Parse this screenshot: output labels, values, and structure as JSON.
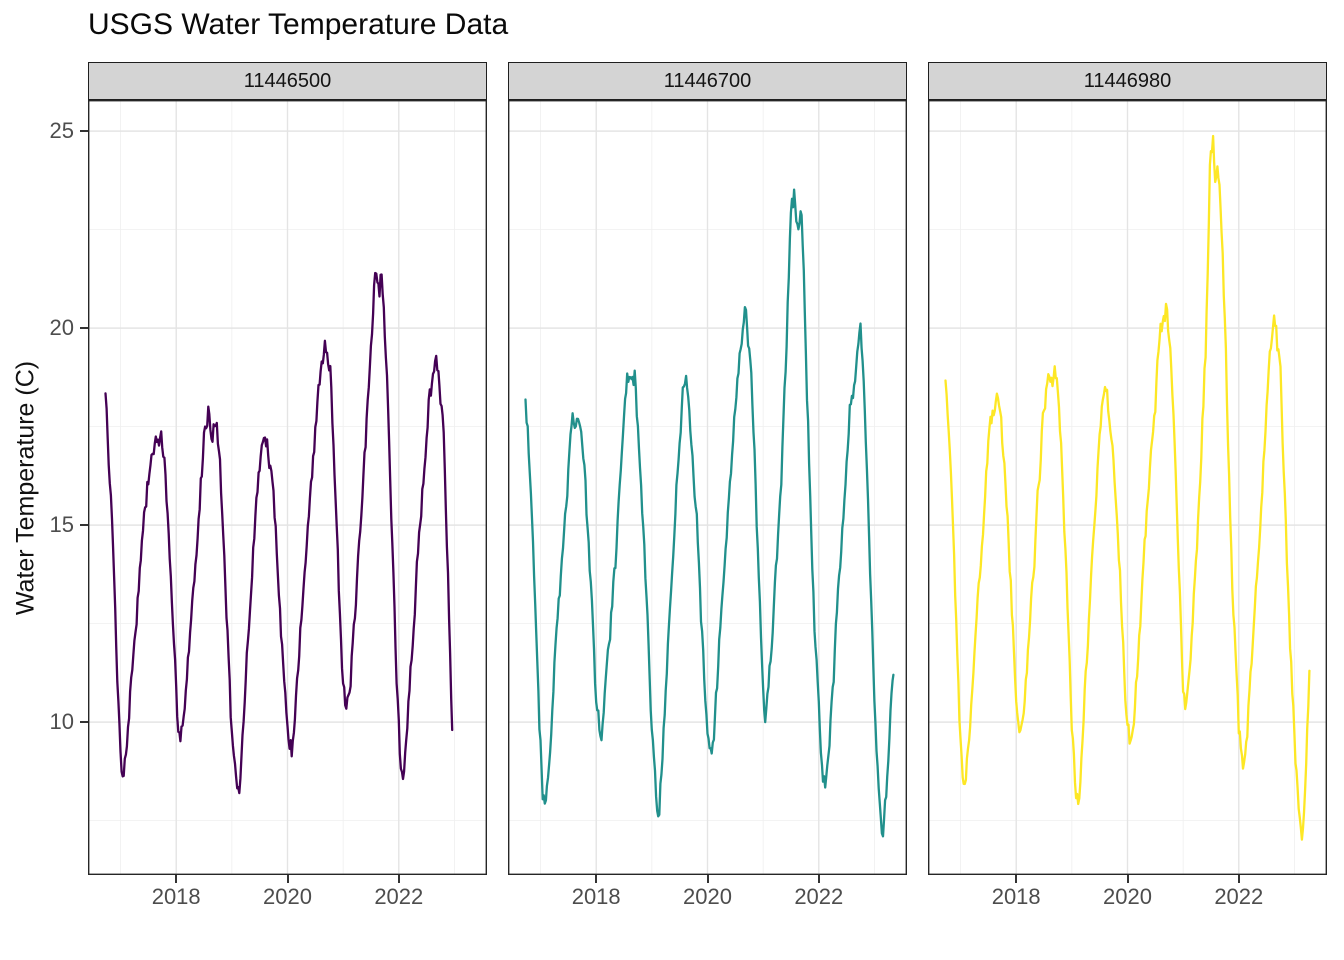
{
  "title": "USGS Water Temperature Data",
  "axes": {
    "y_label": "Water Temperature (C)",
    "y_tick_labels": [
      "25",
      "20",
      "15",
      "10"
    ],
    "x_tick_labels": [
      "2018",
      "2020",
      "2022"
    ]
  },
  "colors": {
    "strip_background": "#D4D4D4",
    "strip_border": "#1F1F1F",
    "panel_border": "#262626",
    "grid_major": "#E4E4E4",
    "grid_minor": "#EFEFEF",
    "tick_mark": "#333333",
    "tick_text": "#4D4D4D",
    "series_purple": "#440154",
    "series_teal": "#21908C",
    "series_yellow": "#FDE725"
  },
  "chart_data": {
    "type": "line",
    "title": "USGS Water Temperature Data",
    "xlabel": "",
    "ylabel": "Water Temperature (C)",
    "ylim": [
      6.12,
      25.79
    ],
    "xlim": [
      2016.415,
      2023.585
    ],
    "y_major_ticks": [
      25,
      20,
      15,
      10
    ],
    "y_minor_gridlines": [
      22.5,
      17.5,
      12.5,
      7.5
    ],
    "x_major_ticks": [
      2018,
      2020,
      2022
    ],
    "x_minor_gridlines": [
      2017,
      2019,
      2021,
      2023
    ],
    "grid": true,
    "legend": "none",
    "facet_variable": "USGS station id",
    "x_unit": "decimal year",
    "y_unit": "degrees C",
    "facets": [
      {
        "label": "11446500",
        "color": "#440154",
        "points": [
          [
            2016.73,
            18.4
          ],
          [
            2016.76,
            17.6
          ],
          [
            2016.85,
            15.0
          ],
          [
            2016.95,
            10.8
          ],
          [
            2017.02,
            8.9
          ],
          [
            2017.06,
            8.7
          ],
          [
            2017.12,
            9.6
          ],
          [
            2017.2,
            11.2
          ],
          [
            2017.3,
            13.0
          ],
          [
            2017.4,
            14.8
          ],
          [
            2017.5,
            16.2
          ],
          [
            2017.58,
            16.9
          ],
          [
            2017.65,
            17.1
          ],
          [
            2017.72,
            17.3
          ],
          [
            2017.78,
            16.7
          ],
          [
            2017.85,
            15.2
          ],
          [
            2017.95,
            12.0
          ],
          [
            2018.02,
            10.1
          ],
          [
            2018.08,
            9.8
          ],
          [
            2018.15,
            10.4
          ],
          [
            2018.25,
            12.2
          ],
          [
            2018.4,
            15.0
          ],
          [
            2018.5,
            17.3
          ],
          [
            2018.58,
            18.0
          ],
          [
            2018.65,
            17.4
          ],
          [
            2018.72,
            17.8
          ],
          [
            2018.8,
            16.2
          ],
          [
            2018.9,
            13.0
          ],
          [
            2019.0,
            9.6
          ],
          [
            2019.08,
            8.3
          ],
          [
            2019.13,
            8.1
          ],
          [
            2019.2,
            9.8
          ],
          [
            2019.3,
            12.3
          ],
          [
            2019.42,
            15.2
          ],
          [
            2019.52,
            16.9
          ],
          [
            2019.6,
            17.2
          ],
          [
            2019.68,
            16.6
          ],
          [
            2019.75,
            15.6
          ],
          [
            2019.85,
            13.4
          ],
          [
            2019.95,
            10.8
          ],
          [
            2020.03,
            9.4
          ],
          [
            2020.08,
            9.3
          ],
          [
            2020.15,
            10.6
          ],
          [
            2020.28,
            13.2
          ],
          [
            2020.42,
            15.9
          ],
          [
            2020.52,
            17.8
          ],
          [
            2020.62,
            19.2
          ],
          [
            2020.7,
            19.5
          ],
          [
            2020.78,
            18.9
          ],
          [
            2020.85,
            16.5
          ],
          [
            2020.92,
            13.6
          ],
          [
            2021.0,
            10.8
          ],
          [
            2021.05,
            10.2
          ],
          [
            2021.1,
            10.5
          ],
          [
            2021.2,
            12.4
          ],
          [
            2021.32,
            15.0
          ],
          [
            2021.45,
            18.2
          ],
          [
            2021.55,
            21.0
          ],
          [
            2021.6,
            21.8
          ],
          [
            2021.65,
            20.9
          ],
          [
            2021.7,
            21.4
          ],
          [
            2021.78,
            19.0
          ],
          [
            2021.85,
            16.0
          ],
          [
            2021.95,
            11.5
          ],
          [
            2022.03,
            9.0
          ],
          [
            2022.08,
            8.5
          ],
          [
            2022.15,
            9.8
          ],
          [
            2022.28,
            12.8
          ],
          [
            2022.42,
            15.8
          ],
          [
            2022.55,
            18.3
          ],
          [
            2022.65,
            19.1
          ],
          [
            2022.72,
            18.7
          ],
          [
            2022.8,
            17.5
          ],
          [
            2022.87,
            14.5
          ],
          [
            2022.93,
            11.5
          ],
          [
            2022.96,
            9.8
          ]
        ]
      },
      {
        "label": "11446700",
        "color": "#21908C",
        "points": [
          [
            2016.73,
            18.4
          ],
          [
            2016.78,
            17.2
          ],
          [
            2016.88,
            14.0
          ],
          [
            2016.98,
            10.0
          ],
          [
            2017.04,
            8.1
          ],
          [
            2017.09,
            7.9
          ],
          [
            2017.15,
            9.0
          ],
          [
            2017.25,
            11.5
          ],
          [
            2017.38,
            14.0
          ],
          [
            2017.5,
            16.5
          ],
          [
            2017.58,
            17.5
          ],
          [
            2017.65,
            17.8
          ],
          [
            2017.72,
            17.4
          ],
          [
            2017.8,
            16.2
          ],
          [
            2017.9,
            13.5
          ],
          [
            2018.0,
            10.5
          ],
          [
            2018.07,
            9.7
          ],
          [
            2018.12,
            9.9
          ],
          [
            2018.22,
            11.8
          ],
          [
            2018.35,
            14.2
          ],
          [
            2018.48,
            17.2
          ],
          [
            2018.57,
            18.8
          ],
          [
            2018.63,
            18.4
          ],
          [
            2018.7,
            18.6
          ],
          [
            2018.78,
            17.0
          ],
          [
            2018.88,
            13.8
          ],
          [
            2019.0,
            9.8
          ],
          [
            2019.08,
            7.9
          ],
          [
            2019.13,
            7.7
          ],
          [
            2019.2,
            9.5
          ],
          [
            2019.32,
            12.8
          ],
          [
            2019.45,
            16.0
          ],
          [
            2019.55,
            18.2
          ],
          [
            2019.62,
            18.6
          ],
          [
            2019.7,
            17.4
          ],
          [
            2019.78,
            15.8
          ],
          [
            2019.88,
            13.0
          ],
          [
            2019.98,
            10.0
          ],
          [
            2020.04,
            9.0
          ],
          [
            2020.1,
            9.4
          ],
          [
            2020.2,
            11.6
          ],
          [
            2020.33,
            14.5
          ],
          [
            2020.47,
            17.5
          ],
          [
            2020.58,
            19.6
          ],
          [
            2020.68,
            20.2
          ],
          [
            2020.75,
            19.6
          ],
          [
            2020.82,
            17.8
          ],
          [
            2020.9,
            14.6
          ],
          [
            2021.0,
            10.6
          ],
          [
            2021.04,
            10.0
          ],
          [
            2021.1,
            10.9
          ],
          [
            2021.2,
            13.0
          ],
          [
            2021.32,
            16.0
          ],
          [
            2021.42,
            19.5
          ],
          [
            2021.5,
            22.8
          ],
          [
            2021.56,
            23.4
          ],
          [
            2021.62,
            22.4
          ],
          [
            2021.68,
            22.9
          ],
          [
            2021.75,
            20.5
          ],
          [
            2021.83,
            16.5
          ],
          [
            2021.93,
            12.0
          ],
          [
            2022.05,
            9.0
          ],
          [
            2022.12,
            8.4
          ],
          [
            2022.2,
            9.8
          ],
          [
            2022.32,
            12.5
          ],
          [
            2022.45,
            15.5
          ],
          [
            2022.58,
            18.2
          ],
          [
            2022.7,
            19.4
          ],
          [
            2022.76,
            19.6
          ],
          [
            2022.82,
            18.4
          ],
          [
            2022.9,
            15.0
          ],
          [
            2023.0,
            10.5
          ],
          [
            2023.1,
            7.6
          ],
          [
            2023.15,
            7.1
          ],
          [
            2023.22,
            8.3
          ],
          [
            2023.3,
            10.5
          ],
          [
            2023.34,
            11.2
          ]
        ]
      },
      {
        "label": "11446980",
        "color": "#FDE725",
        "points": [
          [
            2016.73,
            18.5
          ],
          [
            2016.78,
            17.4
          ],
          [
            2016.88,
            14.2
          ],
          [
            2016.98,
            10.2
          ],
          [
            2017.04,
            8.5
          ],
          [
            2017.08,
            8.2
          ],
          [
            2017.15,
            9.4
          ],
          [
            2017.25,
            11.8
          ],
          [
            2017.38,
            14.5
          ],
          [
            2017.5,
            17.0
          ],
          [
            2017.58,
            17.9
          ],
          [
            2017.65,
            18.2
          ],
          [
            2017.72,
            17.6
          ],
          [
            2017.8,
            16.4
          ],
          [
            2017.9,
            13.6
          ],
          [
            2018.0,
            10.6
          ],
          [
            2018.06,
            9.7
          ],
          [
            2018.12,
            10.0
          ],
          [
            2018.22,
            12.0
          ],
          [
            2018.35,
            14.8
          ],
          [
            2018.48,
            17.6
          ],
          [
            2018.58,
            19.0
          ],
          [
            2018.65,
            18.6
          ],
          [
            2018.72,
            18.8
          ],
          [
            2018.8,
            17.2
          ],
          [
            2018.9,
            13.9
          ],
          [
            2019.0,
            9.9
          ],
          [
            2019.08,
            8.2
          ],
          [
            2019.13,
            8.0
          ],
          [
            2019.2,
            9.7
          ],
          [
            2019.32,
            13.0
          ],
          [
            2019.45,
            16.2
          ],
          [
            2019.55,
            18.3
          ],
          [
            2019.62,
            18.5
          ],
          [
            2019.7,
            17.2
          ],
          [
            2019.78,
            15.9
          ],
          [
            2019.88,
            13.2
          ],
          [
            2019.98,
            10.3
          ],
          [
            2020.04,
            9.4
          ],
          [
            2020.1,
            9.8
          ],
          [
            2020.2,
            11.9
          ],
          [
            2020.33,
            14.9
          ],
          [
            2020.47,
            17.8
          ],
          [
            2020.58,
            19.9
          ],
          [
            2020.68,
            20.7
          ],
          [
            2020.75,
            19.9
          ],
          [
            2020.82,
            18.0
          ],
          [
            2020.9,
            14.8
          ],
          [
            2021.0,
            10.8
          ],
          [
            2021.04,
            10.3
          ],
          [
            2021.1,
            11.2
          ],
          [
            2021.2,
            13.4
          ],
          [
            2021.32,
            16.4
          ],
          [
            2021.42,
            20.0
          ],
          [
            2021.48,
            23.8
          ],
          [
            2021.53,
            24.7
          ],
          [
            2021.58,
            23.9
          ],
          [
            2021.63,
            24.3
          ],
          [
            2021.7,
            22.0
          ],
          [
            2021.78,
            18.5
          ],
          [
            2021.88,
            13.5
          ],
          [
            2022.0,
            9.8
          ],
          [
            2022.08,
            8.8
          ],
          [
            2022.15,
            9.9
          ],
          [
            2022.28,
            12.6
          ],
          [
            2022.42,
            16.0
          ],
          [
            2022.55,
            19.3
          ],
          [
            2022.62,
            20.3
          ],
          [
            2022.68,
            19.8
          ],
          [
            2022.75,
            18.8
          ],
          [
            2022.83,
            15.5
          ],
          [
            2022.92,
            12.0
          ],
          [
            2023.02,
            9.0
          ],
          [
            2023.1,
            7.5
          ],
          [
            2023.14,
            7.3
          ],
          [
            2023.2,
            8.6
          ],
          [
            2023.27,
            11.3
          ]
        ]
      }
    ]
  }
}
